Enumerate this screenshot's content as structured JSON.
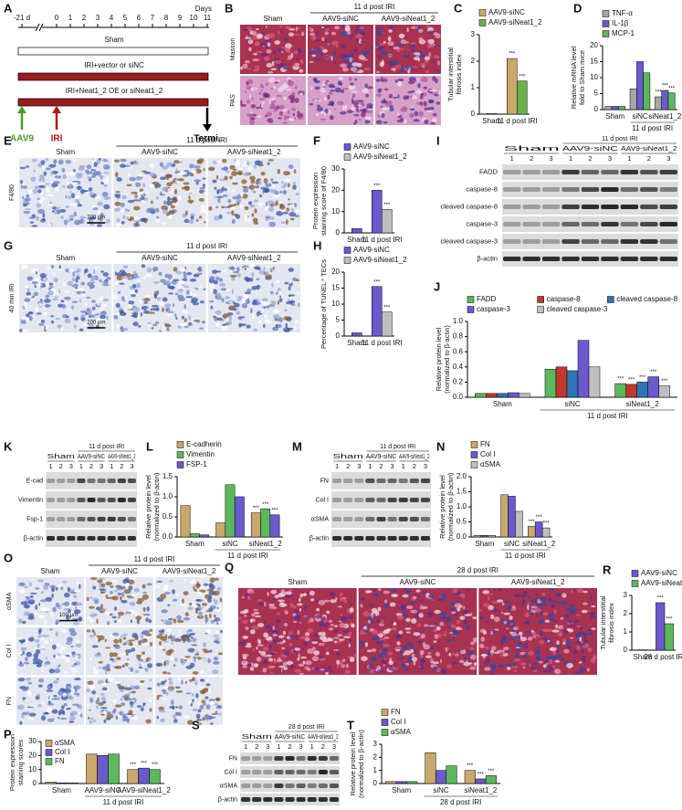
{
  "timeline": {
    "letter": "A",
    "unit": "Days",
    "ticks": [
      "-21 d",
      "0",
      "1",
      "2",
      "3",
      "4",
      "5",
      "6",
      "7",
      "8",
      "9",
      "10",
      "11"
    ],
    "groups": [
      "Sham",
      "IRI+vector or siNC",
      "IRI+Neat1_2 OE or siNeat1_2"
    ],
    "arrows": [
      "AAV9",
      "IRI",
      "Termi."
    ]
  },
  "images": [
    {
      "letter": "B",
      "group": "11 d post IRI",
      "columns": [
        "Sham",
        "AAV9-siNC",
        "AAV9-siNeat1_2"
      ],
      "rows": [
        "Masson",
        "PAS"
      ]
    },
    {
      "letter": "E",
      "group": "11 d post IRI",
      "columns": [
        "Sham",
        "AAV9-siNC",
        "AAV9-siNeat1_2"
      ],
      "rows": [
        "F4/80"
      ],
      "scale": "200 μm"
    },
    {
      "letter": "G",
      "group": "11 d post IRI",
      "columns": [
        "Sham",
        "AAV9-siNC",
        "AAV9-siNeat1_2"
      ],
      "rows": [
        "40 min IRI"
      ],
      "scale": "200 μm"
    },
    {
      "letter": "O",
      "group": "11 d post IRI",
      "columns": [
        "Sham",
        "AAV9-siNC",
        "AAV9-siNeat1_2"
      ],
      "rows": [
        "αSMA",
        "Col I",
        "FN"
      ],
      "scale": "100 μm"
    },
    {
      "letter": "Q",
      "group": "28 d post IRI",
      "columns": [
        "Sham",
        "AAV9-siNC",
        "AAV9-siNeat1_2"
      ]
    }
  ],
  "blots": [
    {
      "letter": "I",
      "group": "11 d post IRI",
      "columns": [
        "Sham",
        "AAV9-siNC",
        "AAV9-siNeat1_2"
      ],
      "lanes": [
        "1",
        "2",
        "3"
      ],
      "rows": [
        "FADD",
        "caspase-8",
        "cleaved caspase-8",
        "caspase-3",
        "cleaved caspase-3",
        "β-actin"
      ]
    },
    {
      "letter": "K",
      "group": "11 d post IRI",
      "columns": [
        "Sham",
        "AAV9-siNC",
        "AAV9-siNeat1_2"
      ],
      "lanes": [
        "1",
        "2",
        "3"
      ],
      "rows": [
        "E-cad",
        "Vimentin",
        "Fsp-1",
        "β-actin"
      ]
    },
    {
      "letter": "M",
      "group": "11 d post IRI",
      "columns": [
        "Sham",
        "AAV9-siNC",
        "AAV9-siNeat1_2"
      ],
      "lanes": [
        "1",
        "2",
        "3"
      ],
      "rows": [
        "FN",
        "Col I",
        "αSMA",
        "β-actin"
      ]
    },
    {
      "letter": "S",
      "group": "28 d post IRI",
      "columns": [
        "Sham",
        "AAV9-siNC",
        "AAV9-siNeat1_2"
      ],
      "lanes": [
        "1",
        "2",
        "3"
      ],
      "rows": [
        "FN",
        "Col I",
        "αSMA",
        "β-actin"
      ]
    }
  ],
  "chart_data": [
    {
      "letter": "C",
      "type": "bar",
      "ylabel": [
        "Tubular interstitial",
        "fibrosis index"
      ],
      "categories": [
        "Sham",
        "11 d post IRI"
      ],
      "series": [
        {
          "name": "AAV9-siNC",
          "color": "#c9a86a",
          "values": [
            0.02,
            2.1
          ]
        },
        {
          "name": "AAV9-siNeat1_2",
          "color": "#6ab04c",
          "values": [
            null,
            1.25
          ]
        }
      ],
      "ylim": [
        0,
        3
      ],
      "yticks": [
        0,
        1,
        2,
        3
      ],
      "legend": "top",
      "significance": "***"
    },
    {
      "letter": "D",
      "type": "bar",
      "ylabel": [
        "Relative mRNA level",
        "fold to Sham mice"
      ],
      "categories": [
        "Sham",
        "siNC",
        "siNeat1_2"
      ],
      "group_label": "11 d post IRI",
      "series": [
        {
          "name": "TNF-α",
          "color": "#a6a6a6",
          "values": [
            1,
            6.5,
            4
          ]
        },
        {
          "name": "IL-1β",
          "color": "#6a5acd",
          "values": [
            1,
            15,
            6
          ]
        },
        {
          "name": "MCP-1",
          "color": "#5cb85c",
          "values": [
            1,
            11.5,
            5.2
          ]
        }
      ],
      "ylim": [
        0,
        20
      ],
      "yticks": [
        0,
        5,
        10,
        15,
        20
      ],
      "legend": "top",
      "significance": "***"
    },
    {
      "letter": "F",
      "type": "bar",
      "ylabel": [
        "Protein expression",
        "staining score of F4/80"
      ],
      "categories": [
        "Sham",
        "11 d post IRI"
      ],
      "series": [
        {
          "name": "AAV9-siNC",
          "color": "#6a5acd",
          "values": [
            2,
            20
          ]
        },
        {
          "name": "AAV9-siNeat1_2",
          "color": "#bfbfbf",
          "values": [
            null,
            11
          ]
        }
      ],
      "ylim": [
        0,
        30
      ],
      "yticks": [
        0,
        10,
        20,
        30
      ],
      "legend": "top",
      "significance": "***"
    },
    {
      "letter": "H",
      "type": "bar",
      "ylabel": [
        "Percentage of TUNEL⁺ TECs"
      ],
      "categories": [
        "Sham",
        "11 d post IRI"
      ],
      "series": [
        {
          "name": "AAV9-siNC",
          "color": "#6a5acd",
          "values": [
            1,
            15.5
          ]
        },
        {
          "name": "AAV9-siNeat1_2",
          "color": "#bfbfbf",
          "values": [
            null,
            7.5
          ]
        }
      ],
      "ylim": [
        0,
        20
      ],
      "yticks": [
        0,
        5,
        10,
        15,
        20
      ],
      "legend": "top",
      "significance": "***"
    },
    {
      "letter": "J",
      "type": "bar",
      "ylabel": [
        "Relative protein level",
        "(normalized to β-actin)"
      ],
      "categories": [
        "Sham",
        "siNC",
        "siNeat1_2"
      ],
      "group_label": "11 d post IRI",
      "series": [
        {
          "name": "FADD",
          "color": "#5cb85c",
          "values": [
            0.05,
            0.37,
            0.18
          ]
        },
        {
          "name": "caspase-8",
          "color": "#c0392b",
          "values": [
            0.05,
            0.4,
            0.17
          ]
        },
        {
          "name": "cleaved caspase-8",
          "color": "#2e75b6",
          "values": [
            0.05,
            0.35,
            0.2
          ]
        },
        {
          "name": "caspase-3",
          "color": "#6a5acd",
          "values": [
            0.06,
            0.75,
            0.27
          ]
        },
        {
          "name": "cleaved caspase-3",
          "color": "#bfbfbf",
          "values": [
            0.05,
            0.4,
            0.15
          ]
        }
      ],
      "ylim": [
        0,
        1
      ],
      "yticks": [
        {
          "value": 0,
          "label": "0.0"
        },
        0.2,
        0.4,
        0.6,
        0.8,
        {
          "value": 1,
          "label": "1.0"
        }
      ],
      "legend": "top",
      "significance": "***"
    },
    {
      "letter": "L",
      "type": "bar",
      "ylabel": [
        "Relative protein level",
        "(normalized to β-actin)"
      ],
      "categories": [
        "Sham",
        "siNC",
        "siNeat1_2"
      ],
      "group_label": "11 d post IRI",
      "series": [
        {
          "name": "E-cadherin",
          "color": "#c9a86a",
          "values": [
            0.78,
            0.35,
            0.6
          ]
        },
        {
          "name": "Vimentin",
          "color": "#5cb85c",
          "values": [
            0.08,
            1.3,
            0.7
          ]
        },
        {
          "name": "FSP-1",
          "color": "#6a5acd",
          "values": [
            0.05,
            1.0,
            0.55
          ]
        }
      ],
      "ylim": [
        0,
        1.5
      ],
      "yticks": [
        {
          "value": 0,
          "label": "0.0"
        },
        0.5,
        {
          "value": 1,
          "label": "1.0"
        },
        1.5
      ],
      "legend": "top",
      "significance": "***"
    },
    {
      "letter": "N",
      "type": "bar",
      "ylabel": [
        "Relative protein level",
        "(normalized to β-actin)"
      ],
      "categories": [
        "Sham",
        "siNC",
        "siNeat1_2"
      ],
      "group_label": "11 d post IRI",
      "series": [
        {
          "name": "FN",
          "color": "#c9a86a",
          "values": [
            0.05,
            1.4,
            0.35
          ]
        },
        {
          "name": "Col I",
          "color": "#6a5acd",
          "values": [
            0.05,
            1.35,
            0.5
          ]
        },
        {
          "name": "αSMA",
          "color": "#bfbfbf",
          "values": [
            0.05,
            0.85,
            0.3
          ]
        }
      ],
      "ylim": [
        0,
        2
      ],
      "yticks": [
        {
          "value": 0,
          "label": "0.0"
        },
        0.5,
        {
          "value": 1,
          "label": "1.0"
        },
        1.5,
        {
          "value": 2,
          "label": "2.0"
        }
      ],
      "legend": "top",
      "significance": "***"
    },
    {
      "letter": "P",
      "type": "bar",
      "ylabel": [
        "Protein expression",
        "staining scores"
      ],
      "categories": [
        "Sham",
        "AAV9-siNC",
        "AAV9-siNeat1_2"
      ],
      "group_label": "11 d post IRI",
      "series": [
        {
          "name": "αSMA",
          "color": "#c9a86a",
          "values": [
            1,
            21,
            10
          ]
        },
        {
          "name": "Col I",
          "color": "#6a5acd",
          "values": [
            0.5,
            20,
            11
          ]
        },
        {
          "name": "FN",
          "color": "#5cb85c",
          "values": [
            0.5,
            21,
            10
          ]
        }
      ],
      "ylim": [
        0,
        30
      ],
      "yticks": [
        0,
        10,
        20,
        30
      ],
      "legend": "upper left",
      "significance": "***"
    },
    {
      "letter": "R",
      "type": "bar",
      "ylabel": [
        "Tubular interstitial",
        "fibrosis index"
      ],
      "categories": [
        "Sham",
        "28 d post IRI"
      ],
      "series": [
        {
          "name": "AAV9-siNC",
          "color": "#6a5acd",
          "values": [
            0.02,
            2.6
          ]
        },
        {
          "name": "AAV9-siNeat1_2",
          "color": "#5cb85c",
          "values": [
            null,
            1.45
          ]
        }
      ],
      "ylim": [
        0,
        3
      ],
      "yticks": [
        0,
        1,
        2,
        3
      ],
      "legend": "top",
      "significance": "***"
    },
    {
      "letter": "T",
      "type": "bar",
      "ylabel": [
        "Relative protein level",
        "(normalized to β-actin)"
      ],
      "categories": [
        "Sham",
        "siNC",
        "siNeat1_2"
      ],
      "group_label": "28 d post IRI",
      "series": [
        {
          "name": "FN",
          "color": "#c9a86a",
          "values": [
            0.15,
            2.35,
            1.0
          ]
        },
        {
          "name": "Col I",
          "color": "#6a5acd",
          "values": [
            0.15,
            1.0,
            0.35
          ]
        },
        {
          "name": "αSMA",
          "color": "#5cb85c",
          "values": [
            0.15,
            1.35,
            0.6
          ]
        }
      ],
      "ylim": [
        0,
        3
      ],
      "yticks": [
        0,
        1,
        2,
        3
      ],
      "legend": "top",
      "significance": "***"
    }
  ]
}
